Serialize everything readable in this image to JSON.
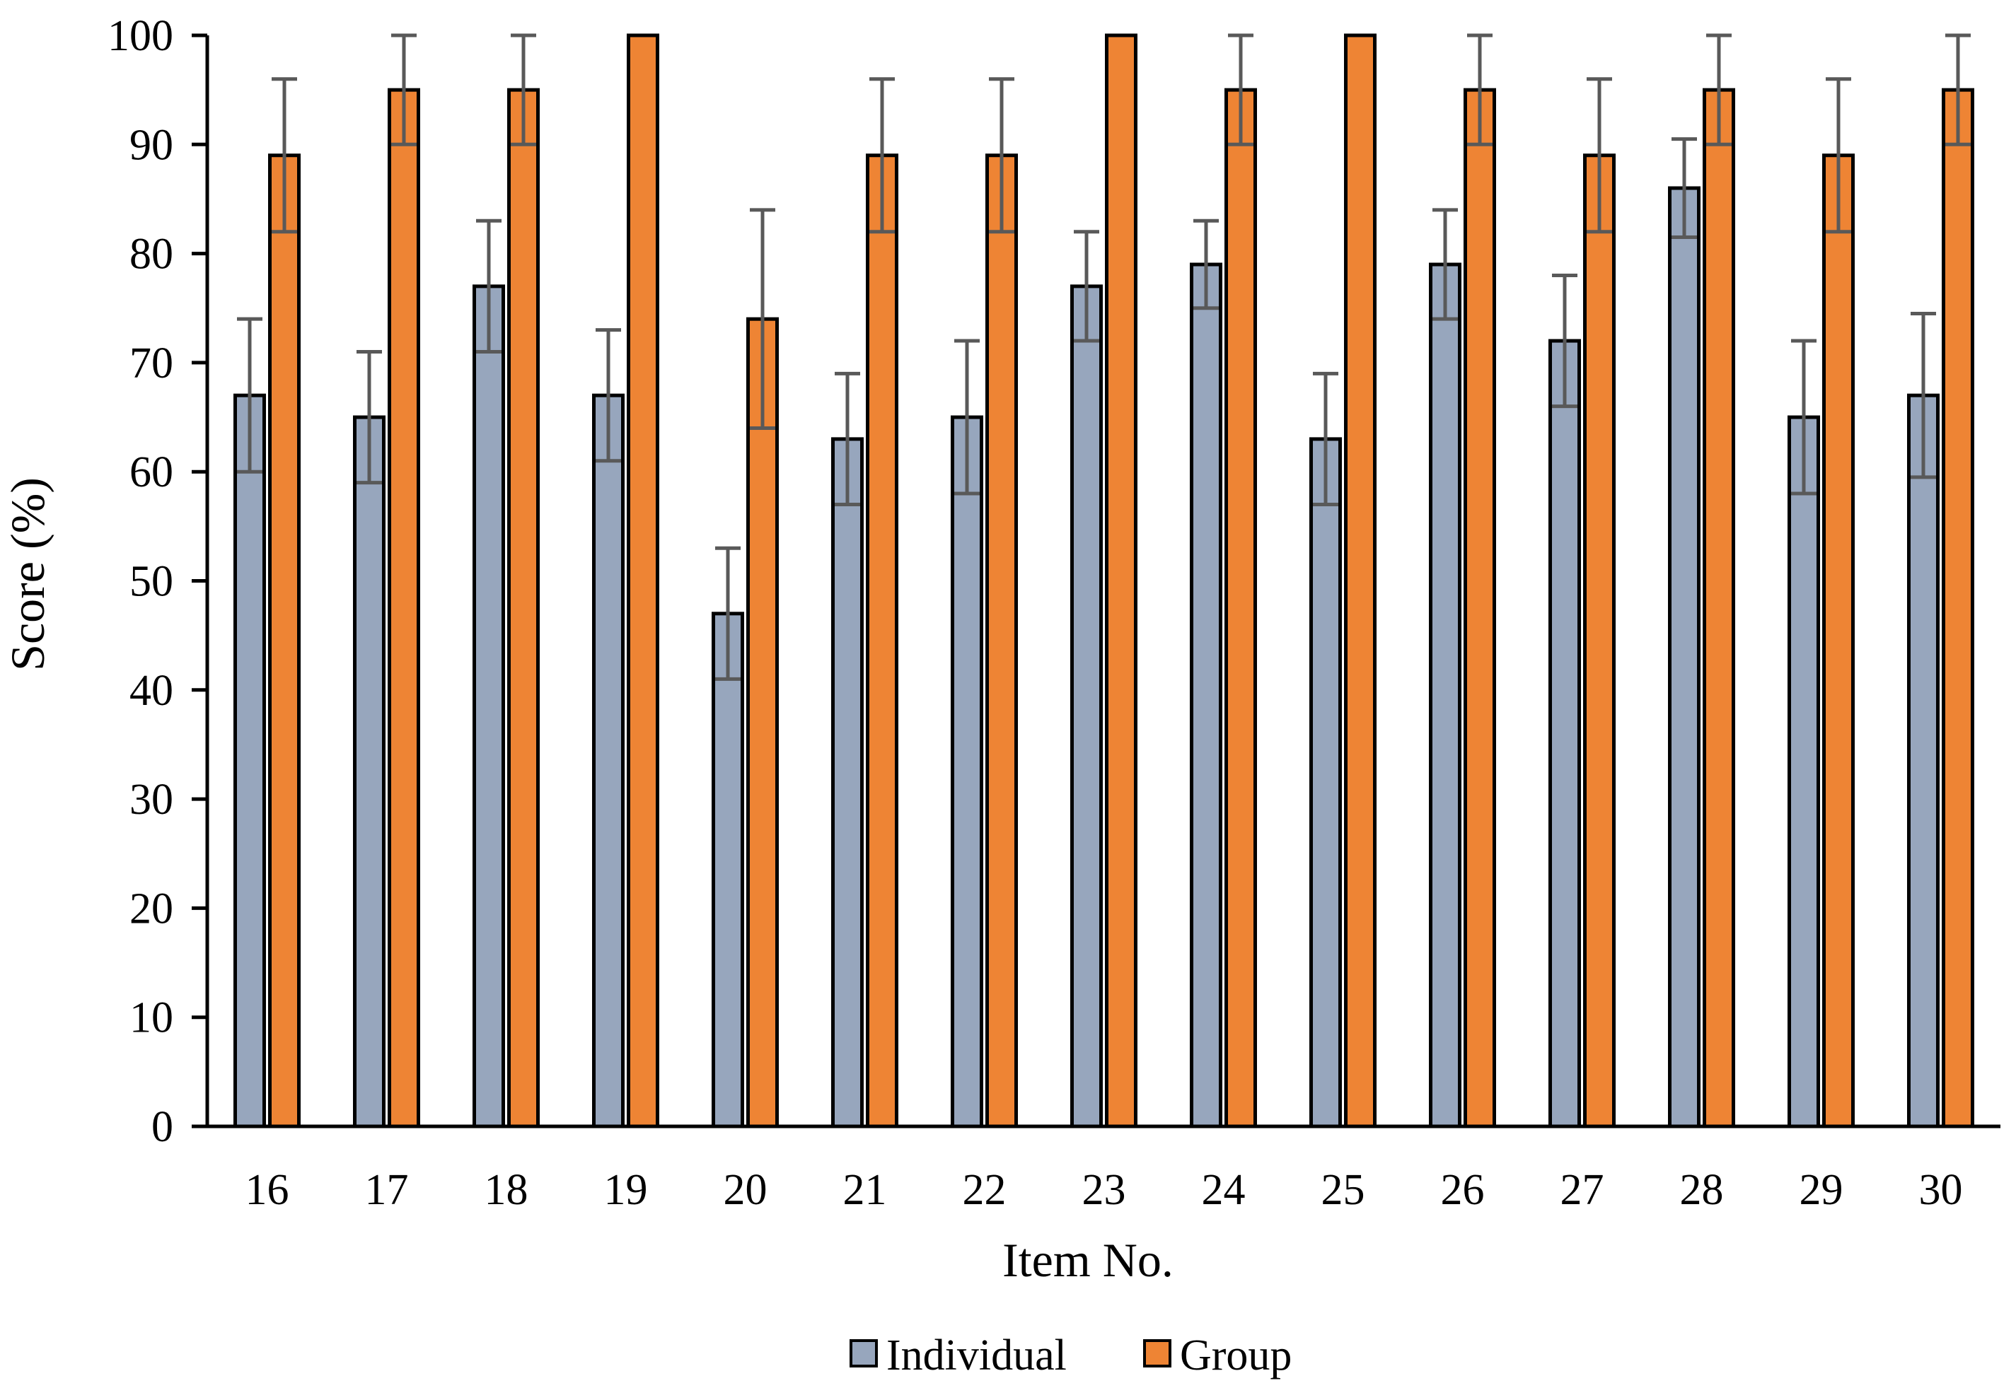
{
  "chart_data": {
    "type": "bar",
    "xlabel": "Item No.",
    "ylabel": "Score (%)",
    "ylim": [
      0,
      100
    ],
    "yticks": [
      0,
      10,
      20,
      30,
      40,
      50,
      60,
      70,
      80,
      90,
      100
    ],
    "grid": false,
    "legend_position": "bottom-center",
    "categories": [
      "16",
      "17",
      "18",
      "19",
      "20",
      "21",
      "22",
      "23",
      "24",
      "25",
      "26",
      "27",
      "28",
      "29",
      "30"
    ],
    "series": [
      {
        "name": "Individual",
        "color": "#97a6bd",
        "values": [
          67,
          65,
          77,
          67,
          47,
          63,
          65,
          77,
          79,
          63,
          79,
          72,
          86,
          65,
          67
        ],
        "error": [
          7,
          6,
          6,
          6,
          6,
          6,
          7,
          5,
          4,
          6,
          5,
          6,
          4.5,
          7,
          7.5
        ]
      },
      {
        "name": "Group",
        "color": "#ee8434",
        "values": [
          89,
          95,
          95,
          100,
          74,
          89,
          89,
          100,
          95,
          100,
          95,
          89,
          95,
          89,
          95
        ],
        "error": [
          7,
          5,
          5,
          0,
          10,
          7,
          7,
          0,
          5,
          0,
          5,
          7,
          5,
          7,
          5
        ]
      }
    ]
  }
}
